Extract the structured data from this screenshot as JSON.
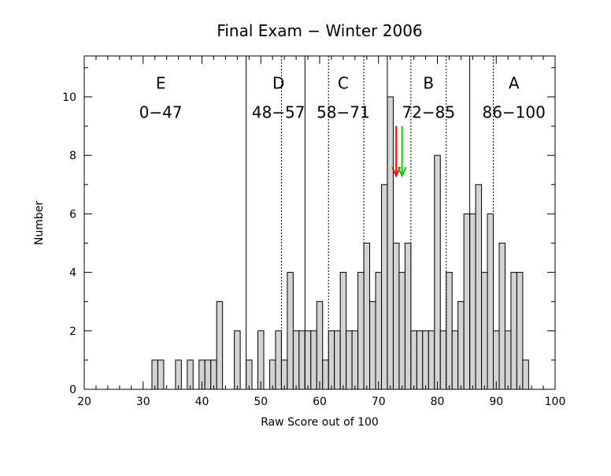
{
  "chart_data": {
    "type": "bar",
    "title": "Final Exam − Winter 2006",
    "xlabel": "Raw Score out of 100",
    "ylabel": "Number",
    "xlim": [
      20,
      100
    ],
    "ylim": [
      0,
      11.4
    ],
    "xticks": [
      20,
      30,
      40,
      50,
      60,
      70,
      80,
      90,
      100
    ],
    "yticks": [
      0,
      2,
      4,
      6,
      8,
      10
    ],
    "bin_width": 1,
    "bins": [
      {
        "x": 32,
        "y": 1
      },
      {
        "x": 33,
        "y": 1
      },
      {
        "x": 36,
        "y": 1
      },
      {
        "x": 38,
        "y": 1
      },
      {
        "x": 40,
        "y": 1
      },
      {
        "x": 41,
        "y": 1
      },
      {
        "x": 42,
        "y": 1
      },
      {
        "x": 43,
        "y": 3
      },
      {
        "x": 46,
        "y": 2
      },
      {
        "x": 48,
        "y": 1
      },
      {
        "x": 50,
        "y": 2
      },
      {
        "x": 52,
        "y": 1
      },
      {
        "x": 53,
        "y": 2
      },
      {
        "x": 54,
        "y": 1
      },
      {
        "x": 55,
        "y": 4
      },
      {
        "x": 56,
        "y": 2
      },
      {
        "x": 57,
        "y": 2
      },
      {
        "x": 58,
        "y": 2
      },
      {
        "x": 59,
        "y": 2
      },
      {
        "x": 60,
        "y": 3
      },
      {
        "x": 61,
        "y": 1
      },
      {
        "x": 62,
        "y": 2
      },
      {
        "x": 63,
        "y": 2
      },
      {
        "x": 64,
        "y": 4
      },
      {
        "x": 65,
        "y": 2
      },
      {
        "x": 66,
        "y": 2
      },
      {
        "x": 67,
        "y": 4
      },
      {
        "x": 68,
        "y": 5
      },
      {
        "x": 69,
        "y": 3
      },
      {
        "x": 70,
        "y": 4
      },
      {
        "x": 71,
        "y": 7
      },
      {
        "x": 72,
        "y": 10
      },
      {
        "x": 73,
        "y": 5
      },
      {
        "x": 74,
        "y": 4
      },
      {
        "x": 75,
        "y": 5
      },
      {
        "x": 76,
        "y": 2
      },
      {
        "x": 77,
        "y": 2
      },
      {
        "x": 78,
        "y": 2
      },
      {
        "x": 79,
        "y": 2
      },
      {
        "x": 80,
        "y": 8
      },
      {
        "x": 81,
        "y": 2
      },
      {
        "x": 82,
        "y": 4
      },
      {
        "x": 83,
        "y": 2
      },
      {
        "x": 84,
        "y": 3
      },
      {
        "x": 85,
        "y": 6
      },
      {
        "x": 86,
        "y": 6
      },
      {
        "x": 87,
        "y": 7
      },
      {
        "x": 88,
        "y": 4
      },
      {
        "x": 89,
        "y": 6
      },
      {
        "x": 90,
        "y": 2
      },
      {
        "x": 91,
        "y": 5
      },
      {
        "x": 92,
        "y": 2
      },
      {
        "x": 93,
        "y": 4
      },
      {
        "x": 94,
        "y": 4
      },
      {
        "x": 95,
        "y": 1
      }
    ],
    "fill_color": "#d3d3d3",
    "edge_color": "#000000",
    "solid_lines": [
      47.5,
      57.5,
      71.5,
      85.5
    ],
    "dashed_lines": [
      53.5,
      61.5,
      67.5,
      75.5,
      81.5,
      89.5
    ],
    "grades": [
      {
        "letter": "E",
        "range": "0−47",
        "x": 33
      },
      {
        "letter": "D",
        "range": "48−57",
        "x": 53
      },
      {
        "letter": "C",
        "range": "58−71",
        "x": 64
      },
      {
        "letter": "B",
        "range": "72−85",
        "x": 78.5
      },
      {
        "letter": "A",
        "range": "86−100",
        "x": 93
      }
    ],
    "grade_letter_y": 10.5,
    "grade_range_y": 9.5,
    "arrows": [
      {
        "name": "red-arrow",
        "color": "#ff0000",
        "x": 73,
        "y_top": 9.0,
        "y_bottom": 7.3
      },
      {
        "name": "green-arrow",
        "color": "#00cc00",
        "x": 74,
        "y_top": 9.0,
        "y_bottom": 7.3
      }
    ]
  }
}
